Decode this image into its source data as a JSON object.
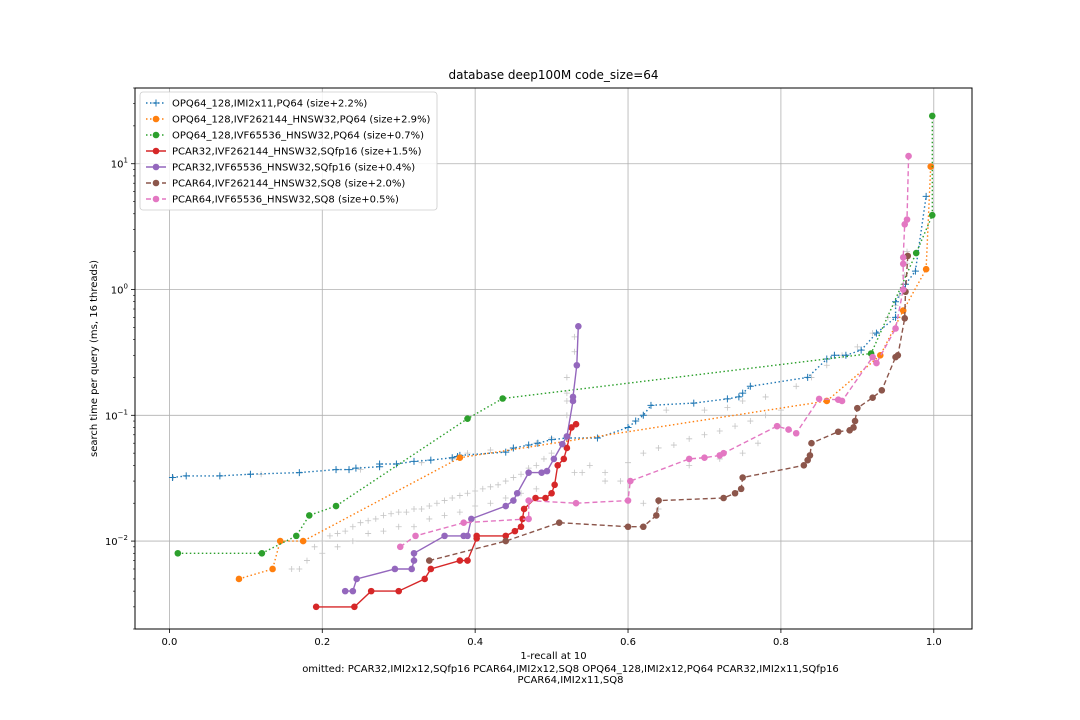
{
  "chart_data": {
    "type": "line",
    "title": "database deep100M code_size=64",
    "xlabel": "1-recall at 10",
    "ylabel": "search time per query (ms, 16 threads)",
    "footnote_lines": [
      "omitted: PCAR32,IMI2x12,SQfp16 PCAR64,IMI2x12,SQ8 OPQ64_128,IMI2x12,PQ64 PCAR32,IMI2x11,SQfp16",
      "PCAR64,IMI2x11,SQ8"
    ],
    "xlim": [
      -0.045,
      1.05
    ],
    "ylim": [
      0.002,
      40
    ],
    "yscale": "log",
    "xticks": [
      {
        "value": 0.0,
        "label": "0.0"
      },
      {
        "value": 0.2,
        "label": "0.2"
      },
      {
        "value": 0.4,
        "label": "0.4"
      },
      {
        "value": 0.6,
        "label": "0.6"
      },
      {
        "value": 0.8,
        "label": "0.8"
      },
      {
        "value": 1.0,
        "label": "1.0"
      }
    ],
    "yticks": [
      {
        "value": 0.01,
        "base": "10",
        "exp": "−2"
      },
      {
        "value": 0.1,
        "base": "10",
        "exp": "−1"
      },
      {
        "value": 1,
        "base": "10",
        "exp": "0"
      },
      {
        "value": 10,
        "base": "10",
        "exp": "1"
      }
    ],
    "grid": true,
    "legend_position": "top-left",
    "background_points": [
      [
        0.005,
        0.032
      ],
      [
        0.12,
        0.034
      ],
      [
        0.25,
        0.037
      ],
      [
        0.33,
        0.042
      ],
      [
        0.37,
        0.045
      ],
      [
        0.39,
        0.05
      ],
      [
        0.42,
        0.053
      ],
      [
        0.45,
        0.055
      ],
      [
        0.48,
        0.06
      ],
      [
        0.5,
        0.066
      ],
      [
        0.52,
        0.1
      ],
      [
        0.52,
        0.13
      ],
      [
        0.52,
        0.15
      ],
      [
        0.52,
        0.2
      ],
      [
        0.53,
        0.32
      ],
      [
        0.53,
        0.42
      ],
      [
        0.19,
        0.009
      ],
      [
        0.2,
        0.01
      ],
      [
        0.21,
        0.011
      ],
      [
        0.22,
        0.0115
      ],
      [
        0.23,
        0.012
      ],
      [
        0.24,
        0.013
      ],
      [
        0.25,
        0.014
      ],
      [
        0.26,
        0.0145
      ],
      [
        0.27,
        0.015
      ],
      [
        0.28,
        0.016
      ],
      [
        0.29,
        0.0165
      ],
      [
        0.3,
        0.017
      ],
      [
        0.31,
        0.017
      ],
      [
        0.32,
        0.018
      ],
      [
        0.33,
        0.018
      ],
      [
        0.34,
        0.019
      ],
      [
        0.35,
        0.02
      ],
      [
        0.36,
        0.021
      ],
      [
        0.37,
        0.022
      ],
      [
        0.38,
        0.023
      ],
      [
        0.39,
        0.024
      ],
      [
        0.4,
        0.025
      ],
      [
        0.41,
        0.026
      ],
      [
        0.42,
        0.027
      ],
      [
        0.43,
        0.028
      ],
      [
        0.44,
        0.03
      ],
      [
        0.45,
        0.032
      ],
      [
        0.46,
        0.034
      ],
      [
        0.47,
        0.038
      ],
      [
        0.48,
        0.04
      ],
      [
        0.49,
        0.045
      ],
      [
        0.5,
        0.05
      ],
      [
        0.16,
        0.006
      ],
      [
        0.17,
        0.006
      ],
      [
        0.18,
        0.007
      ],
      [
        0.2,
        0.008
      ],
      [
        0.22,
        0.009
      ],
      [
        0.24,
        0.01
      ],
      [
        0.26,
        0.0115
      ],
      [
        0.28,
        0.012
      ],
      [
        0.3,
        0.013
      ],
      [
        0.32,
        0.013
      ],
      [
        0.34,
        0.015
      ],
      [
        0.36,
        0.016
      ],
      [
        0.38,
        0.017
      ],
      [
        0.4,
        0.019
      ],
      [
        0.42,
        0.02
      ],
      [
        0.44,
        0.022
      ],
      [
        0.46,
        0.024
      ],
      [
        0.48,
        0.026
      ],
      [
        0.53,
        0.035
      ],
      [
        0.54,
        0.035
      ],
      [
        0.55,
        0.04
      ],
      [
        0.57,
        0.035
      ],
      [
        0.59,
        0.03
      ],
      [
        0.6,
        0.042
      ],
      [
        0.62,
        0.05
      ],
      [
        0.64,
        0.055
      ],
      [
        0.66,
        0.058
      ],
      [
        0.68,
        0.065
      ],
      [
        0.7,
        0.07
      ],
      [
        0.72,
        0.075
      ],
      [
        0.74,
        0.082
      ],
      [
        0.76,
        0.09
      ],
      [
        0.78,
        0.1
      ],
      [
        0.8,
        0.11
      ],
      [
        0.82,
        0.17
      ],
      [
        0.84,
        0.2
      ],
      [
        0.86,
        0.25
      ],
      [
        0.88,
        0.3
      ],
      [
        0.9,
        0.35
      ],
      [
        0.92,
        0.45
      ],
      [
        0.94,
        0.6
      ],
      [
        0.95,
        0.75
      ],
      [
        0.955,
        0.9
      ],
      [
        0.96,
        1.1
      ],
      [
        0.962,
        1.3
      ],
      [
        0.965,
        1.6
      ],
      [
        0.965,
        2.0
      ],
      [
        0.6,
        0.1
      ],
      [
        0.62,
        0.1
      ],
      [
        0.65,
        0.11
      ],
      [
        0.7,
        0.11
      ],
      [
        0.73,
        0.115
      ],
      [
        0.75,
        0.13
      ],
      [
        0.78,
        0.14
      ],
      [
        0.57,
        0.03
      ],
      [
        0.62,
        0.02
      ],
      [
        0.64,
        0.018
      ],
      [
        0.68,
        0.04
      ],
      [
        0.72,
        0.045
      ],
      [
        0.75,
        0.05
      ],
      [
        0.77,
        0.06
      ]
    ],
    "series": [
      {
        "name": "OPQ64_128,IMI2x11,PQ64 (size+2.2%)",
        "color": "#1f77b4",
        "line": "dotted",
        "marker": "plus",
        "points": [
          [
            0.004,
            0.032
          ],
          [
            0.022,
            0.033
          ],
          [
            0.066,
            0.033
          ],
          [
            0.106,
            0.034
          ],
          [
            0.17,
            0.035
          ],
          [
            0.218,
            0.037
          ],
          [
            0.235,
            0.037
          ],
          [
            0.244,
            0.038
          ],
          [
            0.275,
            0.039
          ],
          [
            0.275,
            0.041
          ],
          [
            0.297,
            0.041
          ],
          [
            0.32,
            0.043
          ],
          [
            0.342,
            0.044
          ],
          [
            0.37,
            0.046
          ],
          [
            0.377,
            0.047
          ],
          [
            0.38,
            0.048
          ],
          [
            0.44,
            0.051
          ],
          [
            0.45,
            0.055
          ],
          [
            0.47,
            0.058
          ],
          [
            0.482,
            0.06
          ],
          [
            0.5,
            0.064
          ],
          [
            0.52,
            0.066
          ],
          [
            0.56,
            0.066
          ],
          [
            0.6,
            0.08
          ],
          [
            0.61,
            0.09
          ],
          [
            0.62,
            0.1
          ],
          [
            0.63,
            0.12
          ],
          [
            0.686,
            0.125
          ],
          [
            0.73,
            0.135
          ],
          [
            0.745,
            0.14
          ],
          [
            0.75,
            0.15
          ],
          [
            0.76,
            0.17
          ],
          [
            0.835,
            0.2
          ],
          [
            0.86,
            0.28
          ],
          [
            0.87,
            0.3
          ],
          [
            0.885,
            0.3
          ],
          [
            0.905,
            0.33
          ],
          [
            0.925,
            0.45
          ],
          [
            0.95,
            0.6
          ],
          [
            0.95,
            0.8
          ],
          [
            0.963,
            1.1
          ],
          [
            0.976,
            1.4
          ],
          [
            0.99,
            5.5
          ]
        ]
      },
      {
        "name": "OPQ64_128,IVF262144_HNSW32,PQ64 (size+2.9%)",
        "color": "#ff7f0e",
        "line": "dotted",
        "marker": "circle",
        "points": [
          [
            0.091,
            0.005
          ],
          [
            0.135,
            0.006
          ],
          [
            0.145,
            0.01
          ],
          [
            0.175,
            0.01
          ],
          [
            0.38,
            0.046
          ],
          [
            0.86,
            0.13
          ],
          [
            0.93,
            0.3
          ],
          [
            0.96,
            0.68
          ],
          [
            0.99,
            1.45
          ],
          [
            0.996,
            9.5
          ]
        ]
      },
      {
        "name": "OPQ64_128,IVF65536_HNSW32,PQ64 (size+0.7%)",
        "color": "#2ca02c",
        "line": "dotted",
        "marker": "circle",
        "points": [
          [
            0.011,
            0.008
          ],
          [
            0.121,
            0.008
          ],
          [
            0.166,
            0.011
          ],
          [
            0.183,
            0.016
          ],
          [
            0.218,
            0.019
          ],
          [
            0.39,
            0.094
          ],
          [
            0.436,
            0.136
          ],
          [
            0.918,
            0.31
          ],
          [
            0.977,
            1.95
          ],
          [
            0.998,
            3.9
          ],
          [
            0.998,
            24
          ]
        ]
      },
      {
        "name": "PCAR32,IVF262144_HNSW32,SQfp16 (size+1.5%)",
        "color": "#d62728",
        "line": "solid",
        "marker": "circle",
        "points": [
          [
            0.192,
            0.003
          ],
          [
            0.242,
            0.003
          ],
          [
            0.264,
            0.004
          ],
          [
            0.3,
            0.004
          ],
          [
            0.334,
            0.005
          ],
          [
            0.342,
            0.006
          ],
          [
            0.38,
            0.007
          ],
          [
            0.39,
            0.007
          ],
          [
            0.402,
            0.0105
          ],
          [
            0.402,
            0.011
          ],
          [
            0.44,
            0.011
          ],
          [
            0.452,
            0.012
          ],
          [
            0.46,
            0.013
          ],
          [
            0.462,
            0.015
          ],
          [
            0.464,
            0.018
          ],
          [
            0.479,
            0.022
          ],
          [
            0.492,
            0.022
          ],
          [
            0.5,
            0.024
          ],
          [
            0.504,
            0.028
          ],
          [
            0.508,
            0.04
          ],
          [
            0.516,
            0.045
          ],
          [
            0.52,
            0.055
          ],
          [
            0.526,
            0.08
          ],
          [
            0.532,
            0.085
          ]
        ]
      },
      {
        "name": "PCAR32,IVF65536_HNSW32,SQfp16 (size+0.4%)",
        "color": "#9467bd",
        "line": "solid",
        "marker": "circle",
        "points": [
          [
            0.23,
            0.004
          ],
          [
            0.24,
            0.004
          ],
          [
            0.245,
            0.005
          ],
          [
            0.295,
            0.006
          ],
          [
            0.317,
            0.006
          ],
          [
            0.32,
            0.007
          ],
          [
            0.32,
            0.008
          ],
          [
            0.36,
            0.011
          ],
          [
            0.385,
            0.011
          ],
          [
            0.39,
            0.011
          ],
          [
            0.395,
            0.015
          ],
          [
            0.44,
            0.019
          ],
          [
            0.45,
            0.021
          ],
          [
            0.455,
            0.024
          ],
          [
            0.47,
            0.035
          ],
          [
            0.487,
            0.035
          ],
          [
            0.494,
            0.036
          ],
          [
            0.503,
            0.045
          ],
          [
            0.514,
            0.059
          ],
          [
            0.52,
            0.068
          ],
          [
            0.528,
            0.13
          ],
          [
            0.528,
            0.14
          ],
          [
            0.533,
            0.25
          ],
          [
            0.535,
            0.51
          ]
        ]
      },
      {
        "name": "PCAR64,IVF262144_HNSW32,SQ8 (size+2.0%)",
        "color": "#8c564b",
        "line": "dashed",
        "marker": "circle",
        "points": [
          [
            0.34,
            0.007
          ],
          [
            0.44,
            0.01
          ],
          [
            0.51,
            0.014
          ],
          [
            0.6,
            0.013
          ],
          [
            0.62,
            0.013
          ],
          [
            0.637,
            0.016
          ],
          [
            0.64,
            0.021
          ],
          [
            0.725,
            0.022
          ],
          [
            0.74,
            0.024
          ],
          [
            0.748,
            0.026
          ],
          [
            0.75,
            0.032
          ],
          [
            0.83,
            0.04
          ],
          [
            0.835,
            0.044
          ],
          [
            0.838,
            0.048
          ],
          [
            0.84,
            0.06
          ],
          [
            0.875,
            0.074
          ],
          [
            0.89,
            0.076
          ],
          [
            0.895,
            0.08
          ],
          [
            0.897,
            0.09
          ],
          [
            0.9,
            0.114
          ],
          [
            0.92,
            0.138
          ],
          [
            0.932,
            0.158
          ],
          [
            0.95,
            0.29
          ],
          [
            0.953,
            0.3
          ],
          [
            0.962,
            0.59
          ],
          [
            0.963,
            0.96
          ],
          [
            0.966,
            1.85
          ]
        ]
      },
      {
        "name": "PCAR64,IVF65536_HNSW32,SQ8 (size+0.5%)",
        "color": "#e377c2",
        "line": "dashed",
        "marker": "circle",
        "points": [
          [
            0.302,
            0.009
          ],
          [
            0.322,
            0.011
          ],
          [
            0.385,
            0.014
          ],
          [
            0.47,
            0.015
          ],
          [
            0.47,
            0.021
          ],
          [
            0.532,
            0.02
          ],
          [
            0.6,
            0.021
          ],
          [
            0.603,
            0.03
          ],
          [
            0.68,
            0.045
          ],
          [
            0.7,
            0.046
          ],
          [
            0.72,
            0.048
          ],
          [
            0.725,
            0.05
          ],
          [
            0.795,
            0.082
          ],
          [
            0.81,
            0.077
          ],
          [
            0.82,
            0.072
          ],
          [
            0.85,
            0.135
          ],
          [
            0.875,
            0.133
          ],
          [
            0.88,
            0.13
          ],
          [
            0.92,
            0.29
          ],
          [
            0.925,
            0.26
          ],
          [
            0.95,
            0.49
          ],
          [
            0.96,
            1.0
          ],
          [
            0.96,
            1.6
          ],
          [
            0.96,
            1.8
          ],
          [
            0.962,
            3.3
          ],
          [
            0.965,
            3.6
          ],
          [
            0.967,
            11.5
          ]
        ]
      }
    ]
  }
}
